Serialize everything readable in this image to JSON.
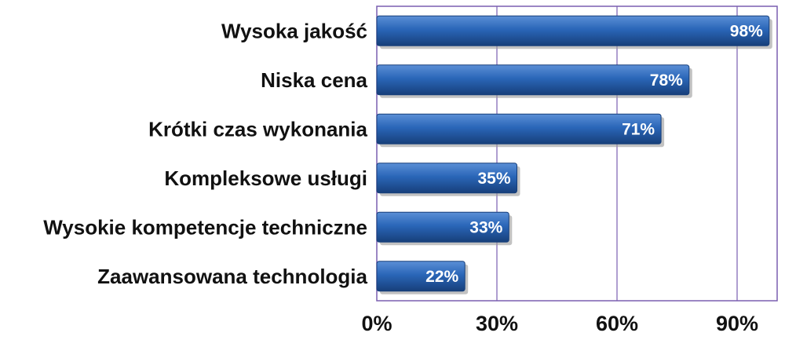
{
  "chart_data": {
    "type": "bar",
    "orientation": "horizontal",
    "categories": [
      "Wysoka jakość",
      "Niska cena",
      "Krótki czas wykonania",
      "Kompleksowe usługi",
      "Wysokie kompetencje techniczne",
      "Zaawansowana technologia"
    ],
    "values": [
      98,
      78,
      71,
      35,
      33,
      22
    ],
    "value_labels": [
      "98%",
      "78%",
      "71%",
      "35%",
      "33%",
      "22%"
    ],
    "title": "",
    "xlabel": "",
    "ylabel": "",
    "xlim": [
      0,
      100
    ],
    "x_ticks": [
      0,
      30,
      60,
      90
    ],
    "x_tick_labels": [
      "0%",
      "30%",
      "60%",
      "90%"
    ],
    "grid": true,
    "legend": "none",
    "colors": {
      "bar": "#2a66b8",
      "bar_light": "#5b8fd6",
      "bar_dark": "#173f7a",
      "bar_shadow": "#9a9a9a",
      "grid": "#7a5fb0",
      "frame": "#7a5fb0",
      "value_text": "#ffffff",
      "label_text": "#111111"
    }
  }
}
